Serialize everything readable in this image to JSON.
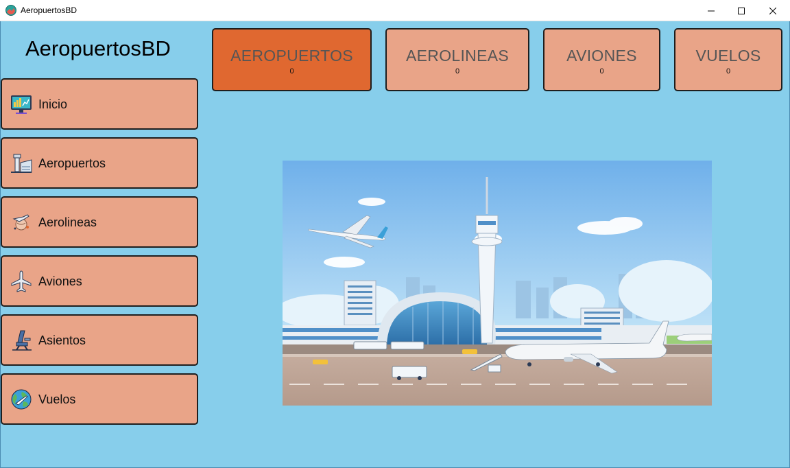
{
  "window": {
    "title": "AeropuertosBD",
    "controls": {
      "minimize": "minimize-icon",
      "maximize": "maximize-icon",
      "close": "close-icon"
    }
  },
  "sidebar": {
    "title": "AeropuertosBD",
    "items": [
      {
        "label": "Inicio",
        "icon": "dashboard-monitor-icon"
      },
      {
        "label": "Aeropuertos",
        "icon": "control-tower-icon"
      },
      {
        "label": "Aerolineas",
        "icon": "airline-globe-icon"
      },
      {
        "label": "Aviones",
        "icon": "airplane-icon"
      },
      {
        "label": "Asientos",
        "icon": "airplane-seat-icon"
      },
      {
        "label": "Vuelos",
        "icon": "globe-flight-icon"
      }
    ]
  },
  "stats": [
    {
      "label": "AEROPUERTOS",
      "count": "0",
      "active": true
    },
    {
      "label": "AEROLINEAS",
      "count": "0",
      "active": false
    },
    {
      "label": "AVIONES",
      "count": "0",
      "active": false
    },
    {
      "label": "VUELOS",
      "count": "0",
      "active": false
    }
  ],
  "hero": {
    "image": "airport-illustration"
  },
  "colors": {
    "background": "#87ceeb",
    "button": "#e9a488",
    "button_active": "#e06830",
    "border": "#1e1e1e"
  }
}
